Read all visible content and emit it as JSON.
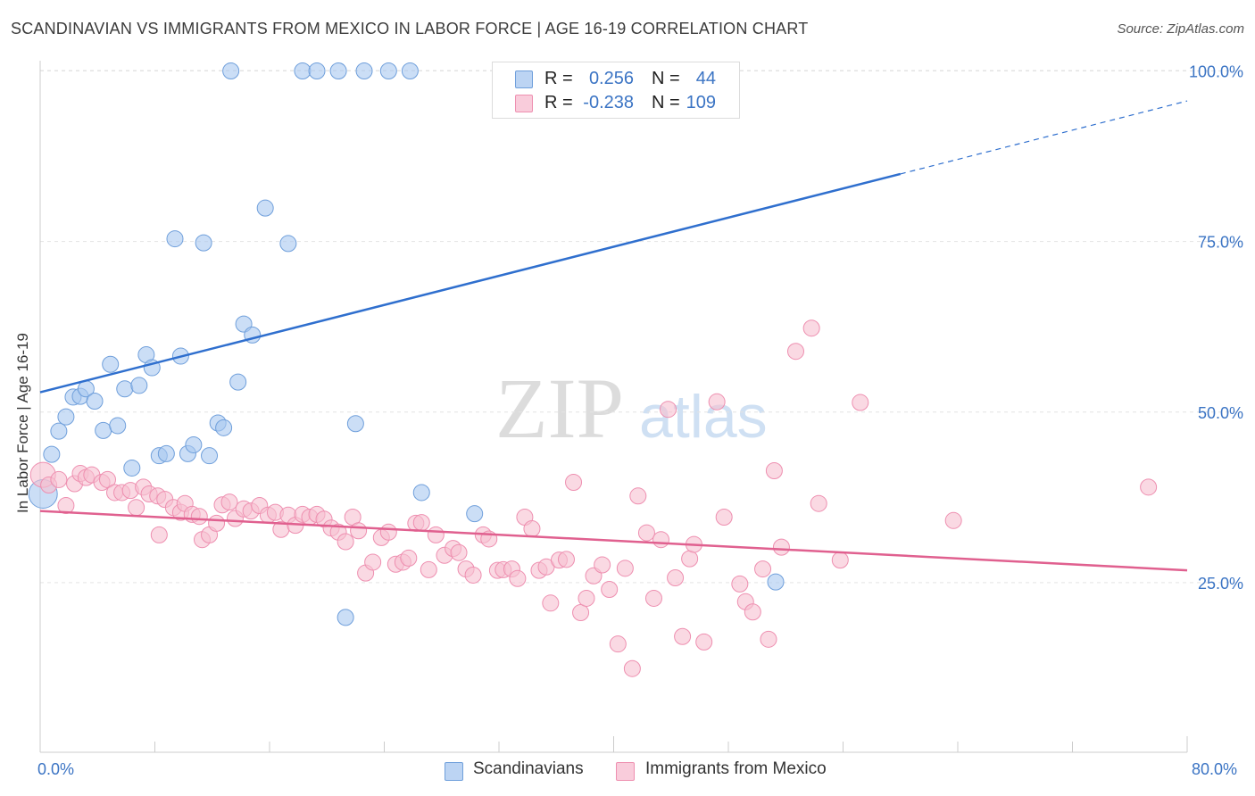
{
  "title": "SCANDINAVIAN VS IMMIGRANTS FROM MEXICO IN LABOR FORCE | AGE 16-19 CORRELATION CHART",
  "source": "Source: ZipAtlas.com",
  "watermark": {
    "zip": "ZIP",
    "atlas": "atlas"
  },
  "colors": {
    "blue_fill": "#a9c8f0",
    "blue_stroke": "#6f9fdb",
    "blue_line": "#2f6fce",
    "pink_fill": "#f6bfd1",
    "pink_stroke": "#ee8fb0",
    "pink_line": "#e0608f",
    "axis_label": "#3b74c4",
    "grid": "#e3e3e3"
  },
  "legend": {
    "rows": [
      {
        "r_label": "R =",
        "r_value": "0.256",
        "n_label": "N =",
        "n_value": "44"
      },
      {
        "r_label": "R =",
        "r_value": "-0.238",
        "n_label": "N =",
        "n_value": "109"
      }
    ]
  },
  "x_min_label": "0.0%",
  "x_max_label": "80.0%",
  "chart_data": {
    "type": "scatter",
    "title": "SCANDINAVIAN VS IMMIGRANTS FROM MEXICO IN LABOR FORCE | AGE 16-19 CORRELATION CHART",
    "xlabel": "",
    "ylabel": "In Labor Force | Age 16-19",
    "xlim": [
      0,
      80
    ],
    "ylim": [
      0,
      102
    ],
    "y_ticks": [
      {
        "value": 100,
        "label": "100.0%"
      },
      {
        "value": 75,
        "label": "75.0%"
      },
      {
        "value": 50,
        "label": "50.0%"
      },
      {
        "value": 25,
        "label": "25.0%"
      }
    ],
    "x_tick_values": [
      0,
      8,
      16,
      24,
      32,
      40,
      48,
      56,
      64,
      72,
      80
    ],
    "grid": true,
    "legend_position": "top-center",
    "series": [
      {
        "name": "Scandinavians",
        "color": "blue",
        "trend": {
          "x0": 0,
          "y0": 52.9,
          "x1": 60,
          "y1": 84.9,
          "dashed_to_x": 80,
          "dashed_to_y": 95.6
        },
        "points": [
          [
            0.2,
            38.0,
            16
          ],
          [
            0.8,
            43.8,
            9
          ],
          [
            1.3,
            47.2,
            9
          ],
          [
            1.8,
            49.3,
            9
          ],
          [
            2.3,
            52.2,
            9
          ],
          [
            2.8,
            52.3,
            9
          ],
          [
            3.2,
            53.4,
            9
          ],
          [
            3.8,
            51.6,
            9
          ],
          [
            4.4,
            47.3,
            9
          ],
          [
            4.9,
            57.0,
            9
          ],
          [
            5.4,
            48.0,
            9
          ],
          [
            5.9,
            53.4,
            9
          ],
          [
            6.4,
            41.8,
            9
          ],
          [
            6.9,
            53.9,
            9
          ],
          [
            7.4,
            58.4,
            9
          ],
          [
            7.8,
            56.5,
            9
          ],
          [
            8.3,
            43.6,
            9
          ],
          [
            8.8,
            43.9,
            9
          ],
          [
            9.4,
            75.4,
            9
          ],
          [
            9.8,
            58.2,
            9
          ],
          [
            10.3,
            43.9,
            9
          ],
          [
            10.7,
            45.2,
            9
          ],
          [
            11.4,
            74.8,
            9
          ],
          [
            11.8,
            43.6,
            9
          ],
          [
            12.4,
            48.4,
            9
          ],
          [
            12.8,
            47.7,
            9
          ],
          [
            13.3,
            100.0,
            9
          ],
          [
            13.8,
            54.4,
            9
          ],
          [
            14.2,
            62.9,
            9
          ],
          [
            14.8,
            61.3,
            9
          ],
          [
            15.7,
            79.9,
            9
          ],
          [
            17.3,
            74.7,
            9
          ],
          [
            18.3,
            100.0,
            9
          ],
          [
            19.3,
            100.0,
            9
          ],
          [
            20.8,
            100.0,
            9
          ],
          [
            21.3,
            19.9,
            9
          ],
          [
            22.0,
            48.3,
            9
          ],
          [
            22.6,
            100.0,
            9
          ],
          [
            24.3,
            100.0,
            9
          ],
          [
            25.8,
            100.0,
            9
          ],
          [
            26.6,
            38.2,
            9
          ],
          [
            30.3,
            35.1,
            9
          ],
          [
            43.2,
            100.0,
            9
          ],
          [
            51.3,
            25.1,
            9
          ]
        ]
      },
      {
        "name": "Immigrants from Mexico",
        "color": "pink",
        "trend": {
          "x0": 0,
          "y0": 35.5,
          "x1": 80,
          "y1": 26.8
        },
        "points": [
          [
            0.2,
            40.8,
            14
          ],
          [
            0.6,
            39.3,
            9
          ],
          [
            1.3,
            40.1,
            9
          ],
          [
            1.8,
            36.3,
            9
          ],
          [
            2.4,
            39.5,
            9
          ],
          [
            2.8,
            41.0,
            9
          ],
          [
            3.2,
            40.4,
            9
          ],
          [
            3.6,
            40.8,
            9
          ],
          [
            4.3,
            39.7,
            9
          ],
          [
            4.7,
            40.1,
            9
          ],
          [
            5.2,
            38.2,
            9
          ],
          [
            5.7,
            38.2,
            9
          ],
          [
            6.3,
            38.5,
            9
          ],
          [
            6.7,
            36.0,
            9
          ],
          [
            7.2,
            39.0,
            9
          ],
          [
            7.6,
            38.0,
            9
          ],
          [
            8.2,
            37.7,
            9
          ],
          [
            8.3,
            32.0,
            9
          ],
          [
            8.7,
            37.2,
            9
          ],
          [
            9.3,
            36.0,
            9
          ],
          [
            9.8,
            35.3,
            9
          ],
          [
            10.1,
            36.6,
            9
          ],
          [
            10.6,
            35.0,
            9
          ],
          [
            11.1,
            34.7,
            9
          ],
          [
            11.3,
            31.3,
            9
          ],
          [
            11.8,
            32.0,
            9
          ],
          [
            12.3,
            33.7,
            9
          ],
          [
            12.7,
            36.4,
            9
          ],
          [
            13.2,
            36.8,
            9
          ],
          [
            13.6,
            34.4,
            9
          ],
          [
            14.2,
            35.8,
            9
          ],
          [
            14.7,
            35.5,
            9
          ],
          [
            15.3,
            36.3,
            9
          ],
          [
            15.9,
            34.9,
            9
          ],
          [
            16.4,
            35.3,
            9
          ],
          [
            16.8,
            32.8,
            9
          ],
          [
            17.3,
            34.9,
            9
          ],
          [
            17.8,
            33.4,
            9
          ],
          [
            18.3,
            35.0,
            9
          ],
          [
            18.8,
            34.6,
            9
          ],
          [
            19.3,
            35.0,
            9
          ],
          [
            19.8,
            34.3,
            9
          ],
          [
            20.3,
            33.0,
            9
          ],
          [
            20.8,
            32.4,
            9
          ],
          [
            21.3,
            31.0,
            9
          ],
          [
            21.8,
            34.6,
            9
          ],
          [
            22.2,
            32.6,
            9
          ],
          [
            22.7,
            26.4,
            9
          ],
          [
            23.2,
            28.0,
            9
          ],
          [
            23.8,
            31.6,
            9
          ],
          [
            24.3,
            32.4,
            9
          ],
          [
            24.8,
            27.7,
            9
          ],
          [
            25.3,
            28.0,
            9
          ],
          [
            25.7,
            28.6,
            9
          ],
          [
            26.2,
            33.7,
            9
          ],
          [
            26.6,
            33.8,
            9
          ],
          [
            27.1,
            26.9,
            9
          ],
          [
            27.6,
            32.0,
            9
          ],
          [
            28.2,
            29.0,
            9
          ],
          [
            28.8,
            30.0,
            9
          ],
          [
            29.2,
            29.4,
            9
          ],
          [
            29.7,
            27.0,
            9
          ],
          [
            30.2,
            26.1,
            9
          ],
          [
            30.9,
            32.0,
            9
          ],
          [
            31.3,
            31.4,
            9
          ],
          [
            31.9,
            26.8,
            9
          ],
          [
            32.3,
            26.9,
            9
          ],
          [
            32.9,
            27.0,
            9
          ],
          [
            33.3,
            25.6,
            9
          ],
          [
            33.8,
            34.6,
            9
          ],
          [
            34.3,
            32.9,
            9
          ],
          [
            34.8,
            26.8,
            9
          ],
          [
            35.3,
            27.3,
            9
          ],
          [
            35.6,
            22.0,
            9
          ],
          [
            36.2,
            28.3,
            9
          ],
          [
            36.7,
            28.4,
            9
          ],
          [
            37.2,
            39.7,
            9
          ],
          [
            37.7,
            20.6,
            9
          ],
          [
            38.1,
            22.7,
            9
          ],
          [
            38.6,
            26.0,
            9
          ],
          [
            39.2,
            27.6,
            9
          ],
          [
            39.7,
            24.0,
            9
          ],
          [
            40.3,
            16.0,
            9
          ],
          [
            40.8,
            27.1,
            9
          ],
          [
            41.3,
            12.4,
            9
          ],
          [
            41.7,
            37.7,
            9
          ],
          [
            42.3,
            32.3,
            9
          ],
          [
            42.8,
            22.7,
            9
          ],
          [
            43.3,
            31.3,
            9
          ],
          [
            43.8,
            50.4,
            9
          ],
          [
            44.3,
            25.7,
            9
          ],
          [
            44.8,
            17.1,
            9
          ],
          [
            45.3,
            28.5,
            9
          ],
          [
            45.6,
            30.6,
            9
          ],
          [
            46.3,
            16.3,
            9
          ],
          [
            47.2,
            51.5,
            9
          ],
          [
            47.7,
            34.6,
            9
          ],
          [
            48.8,
            24.8,
            9
          ],
          [
            49.2,
            22.2,
            9
          ],
          [
            49.7,
            20.7,
            9
          ],
          [
            50.4,
            27.0,
            9
          ],
          [
            50.8,
            16.7,
            9
          ],
          [
            51.2,
            41.4,
            9
          ],
          [
            51.7,
            30.2,
            9
          ],
          [
            52.7,
            58.9,
            9
          ],
          [
            53.8,
            62.3,
            9
          ],
          [
            54.3,
            36.6,
            9
          ],
          [
            55.8,
            28.3,
            9
          ],
          [
            57.2,
            51.4,
            9
          ],
          [
            63.7,
            34.1,
            9
          ],
          [
            77.3,
            39.0,
            9
          ]
        ]
      }
    ]
  },
  "axis_title": "In Labor Force | Age 16-19",
  "bottom_legend": [
    "Scandinavians",
    "Immigrants from Mexico"
  ]
}
